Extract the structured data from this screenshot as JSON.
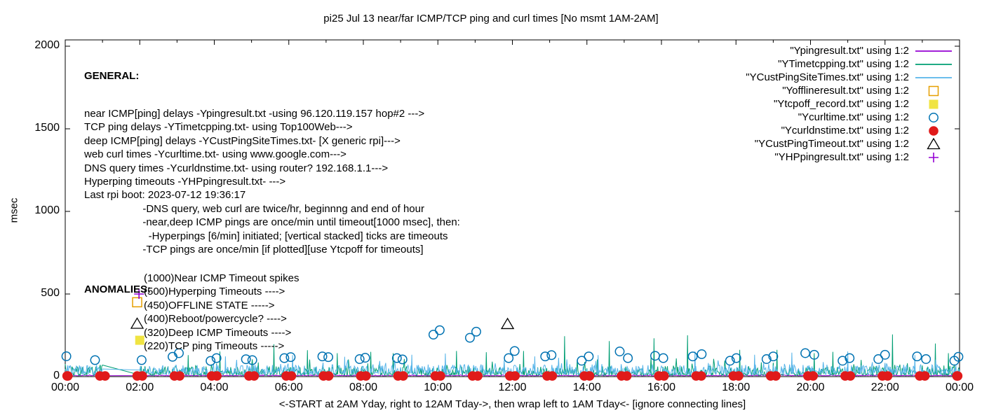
{
  "title": "pi25 Jul 13  near/far ICMP/TCP ping and curl times [No msmt 1AM-2AM]",
  "footer": "<-START at 2AM Yday, right to 12AM Tday->, then wrap left to 1AM Tday<- [ignore connecting lines]",
  "general": {
    "heading": "GENERAL:",
    "lines": [
      "near ICMP[ping] delays -Ypingresult.txt -using 96.120.119.157 hop#2 --->",
      "TCP ping delays -YTimetcpping.txt- using Top100Web--->",
      "deep ICMP[ping] delays -YCustPingSiteTimes.txt- [X generic rpi]--->",
      "web curl times -Ycurltime.txt- using www.google.com--->",
      "DNS query times -Ycurldnstime.txt- using router? 192.168.1.1--->",
      "Hyperping timeouts -YHPpingresult.txt- --->",
      "Last rpi boot: 2023-07-12 19:36:17",
      "                    -DNS query, web curl are twice/hr, beginnng and end of hour",
      "                    -near,deep ICMP pings are once/min until timeout[1000 msec], then:",
      "                      -Hyperpings [6/min] initiated; [vertical stacked] ticks are timeouts",
      "                    -TCP pings are once/min [if plotted][use Ytcpoff for timeouts]"
    ]
  },
  "anomalies": {
    "heading": "ANOMALIES:",
    "items": [
      "(1000)Near ICMP Timeout spikes",
      "(500)Hyperping Timeouts ---->",
      "(450)OFFLINE STATE ----->",
      "(400)Reboot/powercycle? ---->",
      "(320)Deep ICMP Timeouts ---->",
      "(220)TCP ping Timeouts ----->"
    ]
  },
  "chart_data": {
    "type": "line+scatter",
    "title": "pi25 Jul 13  near/far ICMP/TCP ping and curl times [No msmt 1AM-2AM]",
    "ylabel": "msec",
    "ylim": [
      0,
      2000
    ],
    "yticks": [
      0,
      500,
      1000,
      1500,
      2000
    ],
    "x_hours_range": [
      0,
      24
    ],
    "xtick_step_hours": 2,
    "xtick_labels": [
      "00:00",
      "02:00",
      "04:00",
      "06:00",
      "08:00",
      "10:00",
      "12:00",
      "14:00",
      "16:00",
      "18:00",
      "20:00",
      "22:00",
      "00:00"
    ],
    "no_measurement_gap_hours": [
      1,
      2
    ],
    "grid": false,
    "legend_position": "top-right",
    "series": [
      {
        "label": "\"Ypingresult.txt\" using 1:2",
        "type": "noise-line",
        "color": "#9400d3",
        "baseline_msec": 5,
        "jitter_msec": 6,
        "seed": 11
      },
      {
        "label": "\"YTimetcpping.txt\" using 1:2",
        "type": "noise-line",
        "color": "#009e73",
        "baseline_msec": 8,
        "jitter_msec": 55,
        "spike_probability": 0.07,
        "spike_extra_msec": 70,
        "seed": 7,
        "bridge_gap_msec": [
          70,
          10
        ],
        "tall_spikes": [
          [
            3.3,
            130
          ],
          [
            4.15,
            152
          ],
          [
            5.6,
            196
          ],
          [
            6.5,
            160
          ],
          [
            7.3,
            142
          ],
          [
            8.2,
            150
          ],
          [
            8.8,
            142
          ],
          [
            10.5,
            155
          ],
          [
            11.3,
            148
          ],
          [
            12.3,
            155
          ],
          [
            13.4,
            245
          ],
          [
            14.6,
            215
          ],
          [
            15.8,
            232
          ],
          [
            16.7,
            250
          ],
          [
            18.1,
            162
          ],
          [
            19.1,
            162
          ],
          [
            20.1,
            142
          ],
          [
            20.6,
            150
          ],
          [
            22.2,
            255
          ],
          [
            23.35,
            200
          ],
          [
            23.7,
            142
          ]
        ]
      },
      {
        "label": "\"YCustPingSiteTimes.txt\" using 1:2",
        "type": "noise-line",
        "color": "#56b4e9",
        "baseline_msec": 14,
        "jitter_msec": 60,
        "spike_probability": 0.1,
        "spike_extra_msec": 50,
        "seed": 23,
        "bridge_gap_msec": [
          46,
          40
        ],
        "tall_spikes": [
          [
            4.3,
            122
          ],
          [
            6.1,
            130
          ],
          [
            7.5,
            120
          ],
          [
            9.3,
            132
          ],
          [
            10.2,
            140
          ],
          [
            12.6,
            122
          ],
          [
            14.3,
            130
          ],
          [
            16.9,
            152
          ],
          [
            18.5,
            132
          ],
          [
            19.5,
            145
          ],
          [
            21.0,
            152
          ],
          [
            22.8,
            130
          ]
        ]
      },
      {
        "label": "\"Yofflineresult.txt\" using 1:2",
        "type": "scatter",
        "marker": "open-square",
        "color": "#e69f00",
        "points": [
          [
            1.93,
            450
          ]
        ]
      },
      {
        "label": "\"Ytcpoff_record.txt\" using 1:2",
        "type": "scatter",
        "marker": "filled-square",
        "color": "#f0e442",
        "points": [
          [
            2.0,
            220
          ]
        ]
      },
      {
        "label": "\"Ycurltime.txt\" using 1:2",
        "type": "scatter",
        "marker": "open-circle",
        "color": "#0072b2",
        "points": [
          [
            0.03,
            123
          ],
          [
            0.8,
            100
          ],
          [
            2.05,
            100
          ],
          [
            2.88,
            120
          ],
          [
            3.05,
            142
          ],
          [
            3.9,
            95
          ],
          [
            4.06,
            112
          ],
          [
            4.85,
            105
          ],
          [
            5.02,
            100
          ],
          [
            5.88,
            112
          ],
          [
            6.05,
            118
          ],
          [
            6.9,
            122
          ],
          [
            7.06,
            118
          ],
          [
            7.9,
            106
          ],
          [
            8.05,
            114
          ],
          [
            8.9,
            112
          ],
          [
            9.05,
            104
          ],
          [
            9.88,
            254
          ],
          [
            10.05,
            281
          ],
          [
            10.86,
            235
          ],
          [
            11.03,
            272
          ],
          [
            11.9,
            112
          ],
          [
            12.06,
            155
          ],
          [
            12.88,
            122
          ],
          [
            13.05,
            130
          ],
          [
            13.86,
            96
          ],
          [
            14.05,
            122
          ],
          [
            14.88,
            152
          ],
          [
            15.1,
            112
          ],
          [
            15.83,
            126
          ],
          [
            16.05,
            112
          ],
          [
            16.84,
            122
          ],
          [
            17.08,
            136
          ],
          [
            17.84,
            96
          ],
          [
            18.01,
            112
          ],
          [
            18.82,
            106
          ],
          [
            19.0,
            122
          ],
          [
            19.86,
            142
          ],
          [
            20.1,
            132
          ],
          [
            20.86,
            96
          ],
          [
            21.05,
            112
          ],
          [
            21.82,
            106
          ],
          [
            22.0,
            132
          ],
          [
            22.86,
            122
          ],
          [
            23.1,
            106
          ],
          [
            23.86,
            96
          ],
          [
            23.97,
            120
          ]
        ]
      },
      {
        "label": "\"Ycurldnstime.txt\" using 1:2",
        "type": "scatter-hourly",
        "marker": "filled-circle",
        "color": "#e01a1a",
        "hours_from": 0,
        "hours_to": 24,
        "pair_offset_hours": 0.07,
        "value_msec": 4
      },
      {
        "label": "\"YCustPingTimeout.txt\" using 1:2",
        "type": "scatter",
        "marker": "open-triangle",
        "color": "#000000",
        "points": [
          [
            1.93,
            320
          ],
          [
            11.87,
            318
          ]
        ]
      },
      {
        "label": "\"YHPpingresult.txt\" using 1:2",
        "type": "scatter",
        "marker": "plus",
        "color": "#9400d3",
        "points": [
          [
            1.98,
            500
          ]
        ]
      }
    ]
  }
}
